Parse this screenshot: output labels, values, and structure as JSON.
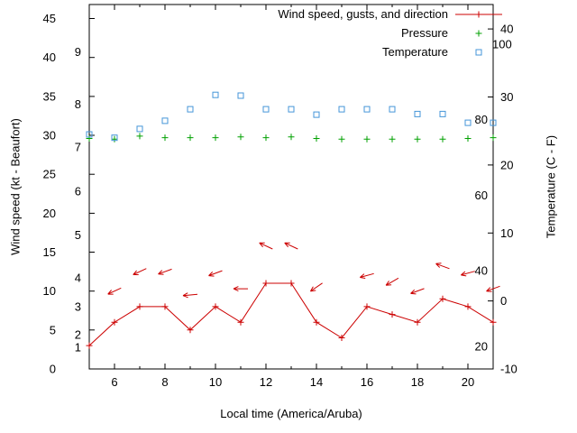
{
  "chart_data": {
    "type": "line",
    "x": [
      5,
      6,
      7,
      8,
      9,
      10,
      11,
      12,
      13,
      14,
      15,
      16,
      17,
      18,
      19,
      20,
      21
    ],
    "series": [
      {
        "name": "Wind speed",
        "axis": "left",
        "units": "kt",
        "color": "#cc0000",
        "style": "line+plus",
        "values": [
          3,
          6,
          8,
          8,
          5,
          8,
          6,
          11,
          11,
          6,
          4,
          8,
          7,
          6,
          9,
          8,
          6
        ]
      },
      {
        "name": "Pressure",
        "axis": "left",
        "color": "#00a000",
        "style": "plus",
        "values": [
          29.6,
          29.5,
          29.9,
          29.7,
          29.7,
          29.7,
          29.8,
          29.7,
          29.8,
          29.6,
          29.5,
          29.5,
          29.5,
          29.5,
          29.5,
          29.6,
          29.7
        ]
      },
      {
        "name": "Temperature",
        "axis": "right",
        "units": "C",
        "color": "#4596d8",
        "style": "open-square",
        "values": [
          24.5,
          24.0,
          25.3,
          26.5,
          28.2,
          30.3,
          30.2,
          28.2,
          28.2,
          27.4,
          28.2,
          28.2,
          28.2,
          27.5,
          27.5,
          26.2,
          26.2
        ]
      }
    ],
    "wind_gust_arrows": [
      {
        "t": 6,
        "gust_kt": 10,
        "angle_deg": 205
      },
      {
        "t": 7,
        "gust_kt": 12.5,
        "angle_deg": 205
      },
      {
        "t": 8,
        "gust_kt": 12.5,
        "angle_deg": 200
      },
      {
        "t": 9,
        "gust_kt": 9.5,
        "angle_deg": 185
      },
      {
        "t": 10,
        "gust_kt": 12.3,
        "angle_deg": 200
      },
      {
        "t": 11,
        "gust_kt": 10.3,
        "angle_deg": 180
      },
      {
        "t": 12,
        "gust_kt": 15.8,
        "angle_deg": 155
      },
      {
        "t": 13,
        "gust_kt": 15.8,
        "angle_deg": 155
      },
      {
        "t": 14,
        "gust_kt": 10.5,
        "angle_deg": 215
      },
      {
        "t": 16,
        "gust_kt": 12,
        "angle_deg": 195
      },
      {
        "t": 17,
        "gust_kt": 11.2,
        "angle_deg": 210
      },
      {
        "t": 18,
        "gust_kt": 10,
        "angle_deg": 200
      },
      {
        "t": 19,
        "gust_kt": 13.2,
        "angle_deg": 160
      },
      {
        "t": 20,
        "gust_kt": 12.3,
        "angle_deg": 195
      },
      {
        "t": 21,
        "gust_kt": 10.3,
        "angle_deg": 200
      }
    ],
    "legend": [
      {
        "label": "Wind speed, gusts, and direction",
        "marker": "line-plus",
        "color": "#cc0000"
      },
      {
        "label": "Pressure",
        "marker": "plus",
        "color": "#00a000"
      },
      {
        "label": "Temperature",
        "marker": "open-square",
        "color": "#4596d8"
      }
    ],
    "legend_position": "top-right-inside",
    "grid": false,
    "axes": {
      "x": {
        "label": "Local time (America/Aruba)",
        "range": [
          5,
          21
        ],
        "ticks": [
          6,
          8,
          10,
          12,
          14,
          16,
          18,
          20
        ]
      },
      "y_left": {
        "label": "Wind speed (kt - Beaufort)",
        "range": [
          0,
          46.8
        ],
        "ticks": [
          0,
          5,
          10,
          15,
          20,
          25,
          30,
          35,
          40,
          45
        ],
        "beaufort_labels": [
          {
            "text": "1",
            "kt": 2.8
          },
          {
            "text": "2",
            "kt": 4.4
          },
          {
            "text": "3",
            "kt": 8.0
          },
          {
            "text": "4",
            "kt": 11.7
          },
          {
            "text": "5",
            "kt": 17.2
          },
          {
            "text": "6",
            "kt": 22.8
          },
          {
            "text": "7",
            "kt": 28.5
          },
          {
            "text": "8",
            "kt": 34.0
          },
          {
            "text": "9",
            "kt": 40.7
          }
        ]
      },
      "y_right": {
        "label": "Temperature (C - F)",
        "range": [
          -10,
          43.6
        ],
        "ticks": [
          -10,
          0,
          10,
          20,
          30,
          40
        ],
        "fahrenheit_labels": [
          {
            "text": "20",
            "f": 20
          },
          {
            "text": "40",
            "f": 40
          },
          {
            "text": "60",
            "f": 60
          },
          {
            "text": "80",
            "f": 80
          },
          {
            "text": "100",
            "f": 100
          }
        ]
      }
    }
  },
  "colors": {
    "background": "#ffffff",
    "axis": "#000000"
  }
}
